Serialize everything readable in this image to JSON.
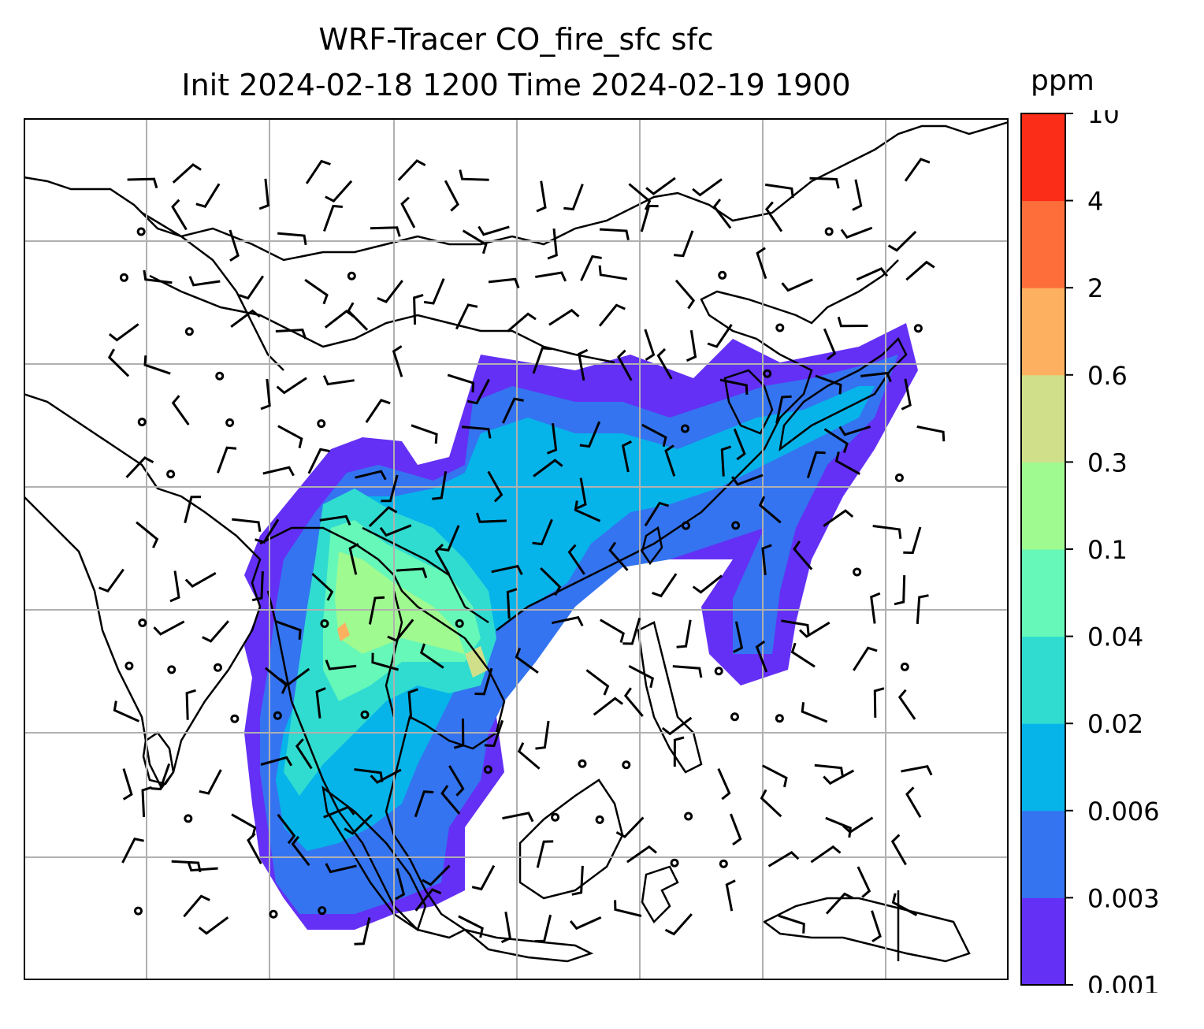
{
  "title": {
    "line1": "WRF-Tracer CO_fire_sfc sfc",
    "line2": "Init 2024-02-18 1200 Time 2024-02-19 1900"
  },
  "colorbar": {
    "unit": "ppm",
    "levels": [
      "0.001",
      "0.003",
      "0.006",
      "0.02",
      "0.04",
      "0.1",
      "0.3",
      "0.6",
      "2",
      "4",
      "10"
    ],
    "colors": [
      "#6430f5",
      "#3474f0",
      "#06b4ea",
      "#30dcd0",
      "#66f8b8",
      "#9ffa90",
      "#d0e08a",
      "#fdb060",
      "#fd6e3a",
      "#fb2c18"
    ]
  },
  "map": {
    "gridlines": true,
    "barbs": true,
    "coastline_color": "#000000",
    "grid_color": "#b0b0b0"
  }
}
